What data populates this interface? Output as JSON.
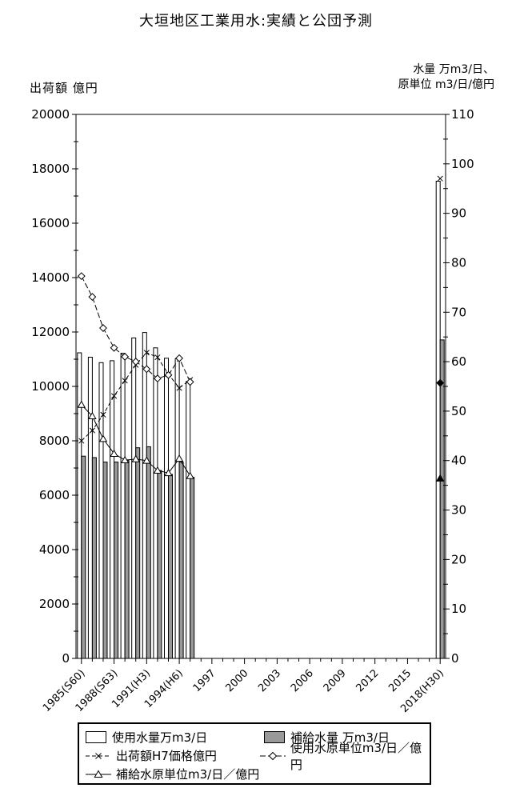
{
  "title": "大垣地区工業用水:実績と公団予測",
  "axes": {
    "left_title": "出荷額 億円",
    "right_title_line1": "水量 万m3/日、",
    "right_title_line2": "原単位 m3/日/億円"
  },
  "chart_data": {
    "type": "bar",
    "subtype": "combo bar+line, dual axis",
    "x_axis": {
      "start_year": 1985,
      "end_year": 2018,
      "categories_shown_as_ticks": "every year"
    },
    "x_tick_labels": [
      "1985(S60)",
      "1988(S63)",
      "1991(H3)",
      "1994(H6)",
      "1997",
      "2000",
      "2003",
      "2006",
      "2009",
      "2012",
      "2015",
      "2018(H30)"
    ],
    "x_tick_label_years": [
      1985,
      1988,
      1991,
      1994,
      1997,
      2000,
      2003,
      2006,
      2009,
      2012,
      2015,
      2018
    ],
    "left_axis": {
      "min": 0,
      "max": 20000,
      "major_step": 2000,
      "minor_step": 1000
    },
    "right_axis": {
      "min": 0,
      "max": 110,
      "major_step": 10,
      "minor_step": 5
    },
    "historical_years": [
      1985,
      1986,
      1987,
      1988,
      1989,
      1990,
      1991,
      1992,
      1993,
      1994,
      1995
    ],
    "forecast_year": 2018,
    "grid": "off",
    "legend_position": "bottom",
    "colors": {
      "bar_usage_fill": "#ffffff",
      "bar_supply_fill": "#999999",
      "stroke": "#000000"
    },
    "series": [
      {
        "name": "使用水量万m3/日",
        "type": "bar",
        "axis": "right",
        "values": [
          61.8,
          60.9,
          59.8,
          60.2,
          61.7,
          64.8,
          65.9,
          62.8,
          60.7,
          60.6,
          56.0
        ],
        "forecast_2018": 96.5
      },
      {
        "name": "補給水量 万m3/日",
        "type": "bar",
        "axis": "right",
        "values": [
          40.9,
          40.6,
          39.7,
          39.7,
          40.0,
          42.6,
          42.8,
          38.0,
          37.2,
          39.7,
          36.6
        ],
        "forecast_2018": 64.4
      },
      {
        "name": "出荷額H7価格億円",
        "type": "line",
        "marker": "x",
        "axis": "left",
        "values": [
          8000,
          8380,
          8960,
          9650,
          10210,
          10790,
          11240,
          11070,
          10450,
          9940,
          10240
        ],
        "forecast_2018": 17640
      },
      {
        "name": "使用水原単位m3/日／億円",
        "type": "line",
        "marker": "diamond",
        "axis": "right",
        "values": [
          77.3,
          73.1,
          66.8,
          62.8,
          61.0,
          60.0,
          58.5,
          56.6,
          57.3,
          60.7,
          55.9
        ],
        "forecast_2018": 55.7,
        "forecast_marker": "filled-diamond"
      },
      {
        "name": "補給水原単位m3/日／億円",
        "type": "line",
        "marker": "triangle",
        "axis": "right",
        "values": [
          51.3,
          49.0,
          44.4,
          41.4,
          40.1,
          40.3,
          40.0,
          38.0,
          37.5,
          40.4,
          36.9
        ],
        "forecast_2018": 36.4,
        "forecast_marker": "filled-triangle"
      }
    ]
  }
}
